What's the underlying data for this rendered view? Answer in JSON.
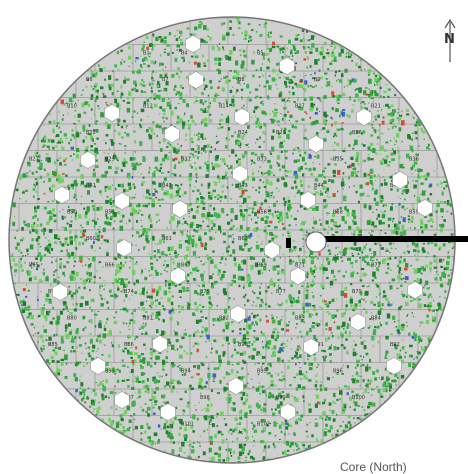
{
  "compass": {
    "label": "N",
    "icon": "north-arrow-icon"
  },
  "colors": {
    "background": "#ffffff",
    "grid_fill": "#cfcfcf",
    "grid_line": "#9a9a9a",
    "circle_outline": "#777777",
    "vegetation_green": [
      "#2f9e3a",
      "#3fb44a",
      "#6fcf5f",
      "#1e7f2c"
    ],
    "highlight_red": "#d94a2a",
    "highlight_blue": "#3a5fd0",
    "hole_fill": "#ffffff",
    "shaft": "#000000"
  },
  "cell_labels": [
    "B1",
    "B4",
    "B5",
    "B6",
    "B7",
    "B8",
    "B9",
    "B10",
    "B12",
    "B14",
    "B17",
    "B21",
    "B22",
    "B23",
    "B24",
    "B25",
    "B26",
    "B27",
    "B29",
    "B31",
    "B33",
    "B35",
    "B36",
    "B41",
    "B42",
    "B43",
    "B44",
    "B45",
    "B50",
    "B53",
    "B55",
    "B56",
    "B58",
    "B59",
    "B60",
    "B61",
    "B62",
    "B63",
    "B64",
    "B65",
    "B66",
    "B67",
    "B69",
    "B71",
    "B72",
    "B73",
    "B74",
    "B75",
    "B77",
    "B79",
    "B80",
    "B81",
    "B82",
    "B83",
    "B84",
    "B85",
    "B86",
    "B87",
    "B90",
    "B91",
    "B92",
    "B93",
    "B94",
    "B95",
    "B96",
    "B97",
    "B98",
    "B99",
    "B100",
    "B101",
    "B102"
  ],
  "caption": "Core (North)"
}
